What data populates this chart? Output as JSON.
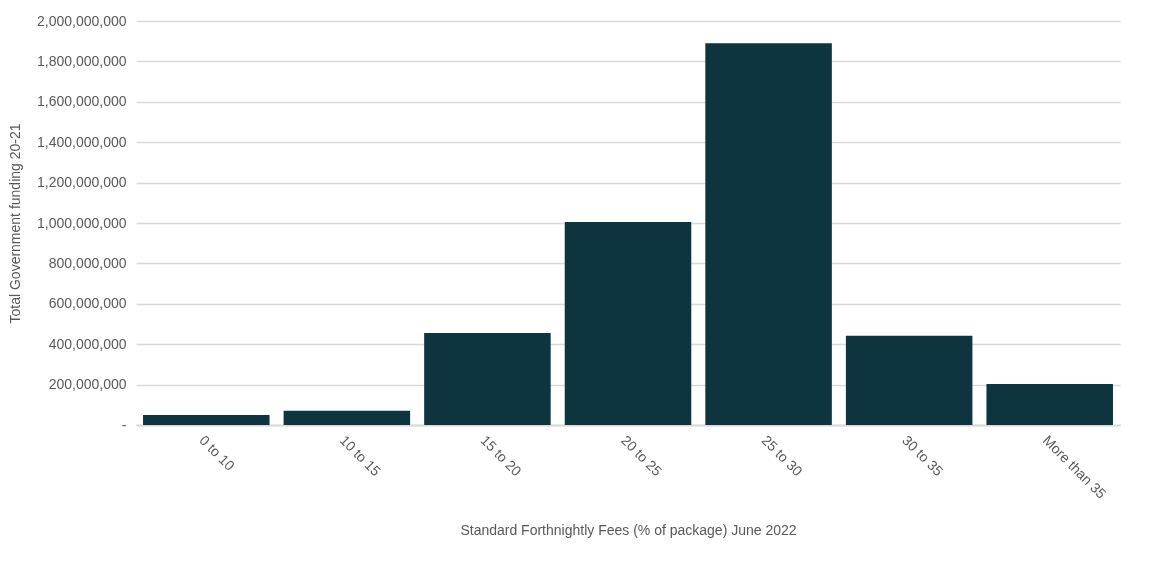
{
  "chart_data": {
    "type": "bar",
    "xlabel": "Standard Forthnightly Fees (% of package) June 2022",
    "ylabel": "Total Government funding 20-21",
    "categories": [
      "0 to 10",
      "10 to 15",
      "15 to 20",
      "20 to 25",
      "25 to 30",
      "30 to 35",
      "More than 35"
    ],
    "values": [
      50000000,
      70000000,
      455000000,
      1005000000,
      1890000000,
      442000000,
      203000000
    ],
    "color": "#0e3440",
    "ylim": [
      0,
      2000000000
    ],
    "yticks": [
      {
        "value": 0,
        "label": "-"
      },
      {
        "value": 200000000,
        "label": "200,000,000"
      },
      {
        "value": 400000000,
        "label": "400,000,000"
      },
      {
        "value": 600000000,
        "label": "600,000,000"
      },
      {
        "value": 800000000,
        "label": "800,000,000"
      },
      {
        "value": 1000000000,
        "label": "1,000,000,000"
      },
      {
        "value": 1200000000,
        "label": "1,200,000,000"
      },
      {
        "value": 1400000000,
        "label": "1,400,000,000"
      },
      {
        "value": 1600000000,
        "label": "1,600,000,000"
      },
      {
        "value": 1800000000,
        "label": "1,800,000,000"
      },
      {
        "value": 2000000000,
        "label": "2,000,000,000"
      }
    ],
    "grid": "y",
    "legend": false
  }
}
